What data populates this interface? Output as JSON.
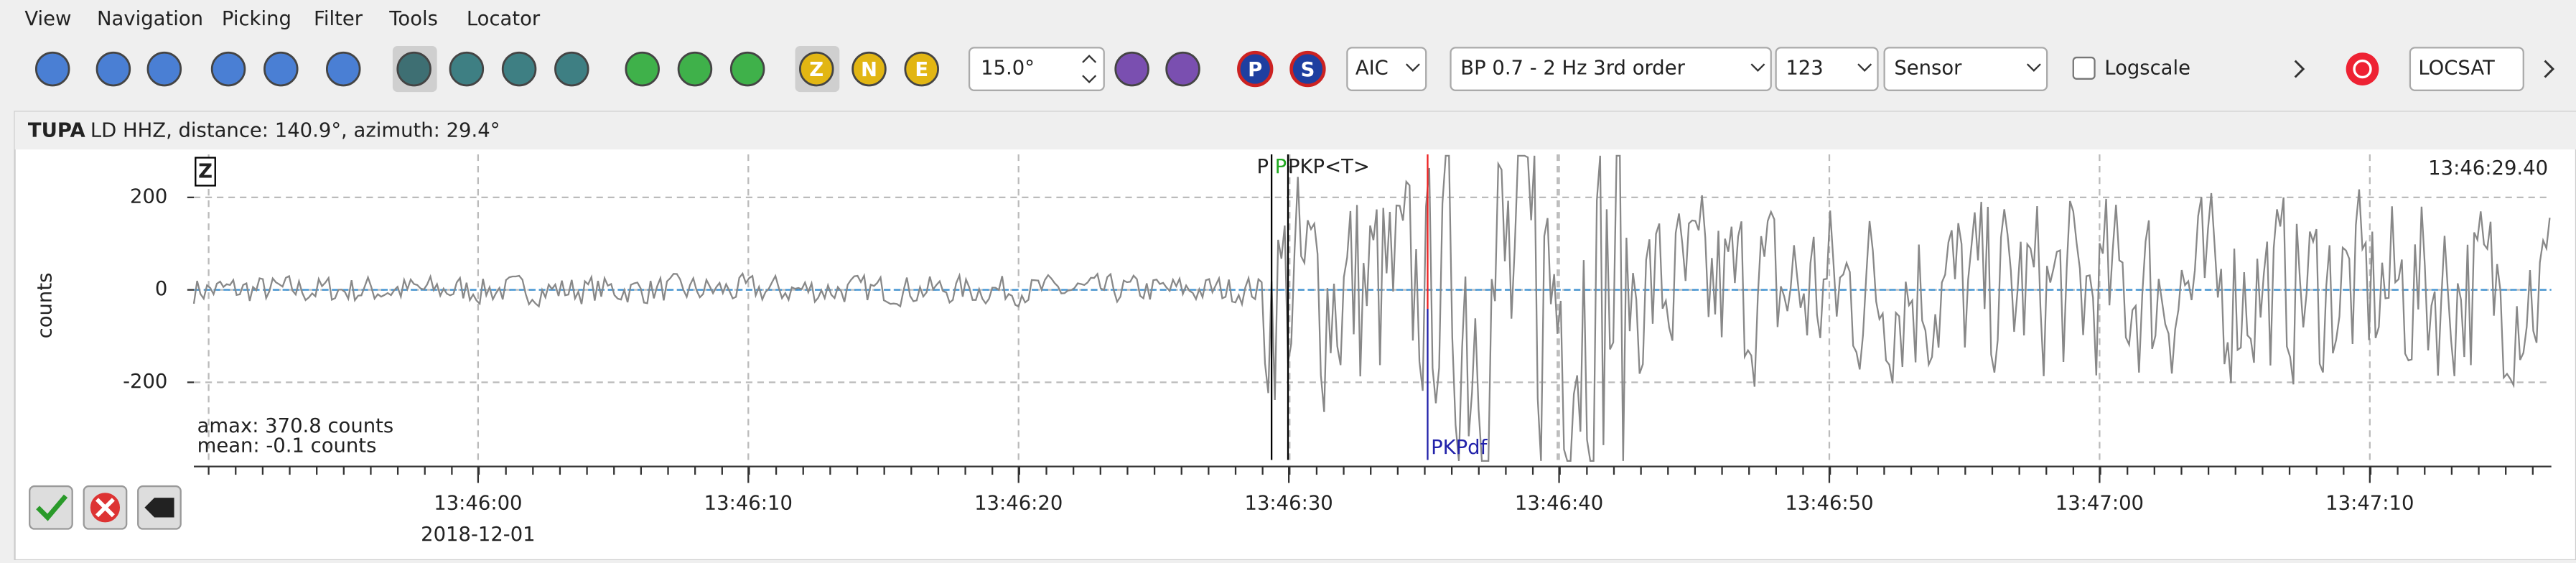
{
  "menu": [
    "View",
    "Navigation",
    "Picking",
    "Filter",
    "Tools",
    "Locator"
  ],
  "toolbar": {
    "component_buttons": [
      "Z",
      "N",
      "E"
    ],
    "phase_buttons": [
      "P",
      "S"
    ],
    "angle": "15.0°",
    "picker": "AIC",
    "filter": "BP 0.7 - 2 Hz  3rd order",
    "number": "123",
    "unit": "Sensor",
    "logscale": "Logscale",
    "locator": "LOCSAT"
  },
  "trace": {
    "station": "TUPA",
    "info": "LD  HHZ, distance: 140.9°, azimuth: 29.4°",
    "component": "Z",
    "time": "13:46:29.40",
    "ylabel": "counts",
    "ylim": [
      -375,
      293
    ],
    "yticks": [
      200,
      0,
      -200
    ],
    "picks": [
      "P",
      "P",
      "PKP<T>",
      "PKPdf"
    ],
    "amax": "amax: 370.8 counts",
    "mean": "mean: -0.1 counts",
    "xticks": [
      "13:46:00",
      "13:46:10",
      "13:46:20",
      "13:46:30",
      "13:46:40",
      "13:46:50",
      "13:47:00",
      "13:47:10"
    ],
    "date": "2018-12-01"
  }
}
